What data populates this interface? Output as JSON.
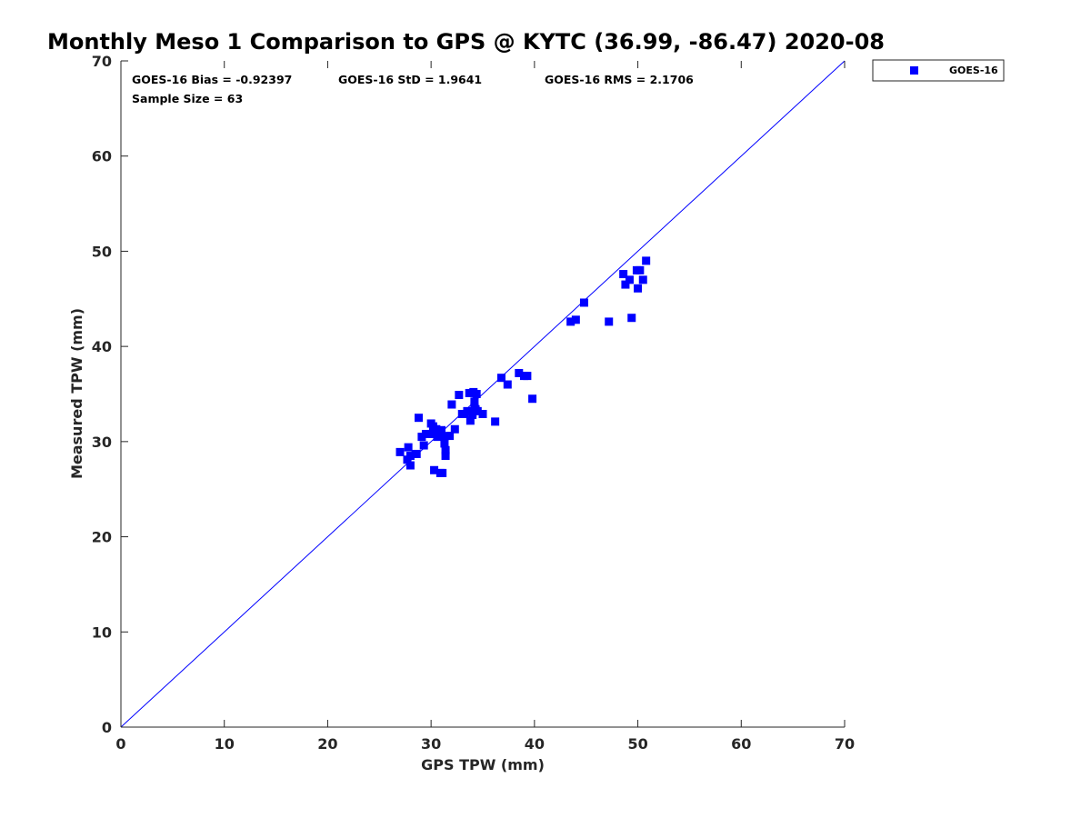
{
  "chart_data": {
    "type": "scatter",
    "title": "Monthly Meso 1 Comparison to GPS @ KYTC (36.99, -86.47) 2020-08",
    "xlabel": "GPS TPW (mm)",
    "ylabel": "Measured TPW (mm)",
    "xlim": [
      0,
      70
    ],
    "ylim": [
      0,
      70
    ],
    "xticks": [
      "0",
      "10",
      "20",
      "30",
      "40",
      "50",
      "60",
      "70"
    ],
    "yticks": [
      "0",
      "10",
      "20",
      "30",
      "40",
      "50",
      "60",
      "70"
    ],
    "grid": false,
    "legend_position": "outside-top-right",
    "stats": {
      "bias": "GOES-16 Bias = -0.92397",
      "std": "GOES-16 StD = 1.9641",
      "rms": "GOES-16 RMS = 2.1706",
      "sample": "Sample Size = 63"
    },
    "reference_line": {
      "from": [
        0,
        0
      ],
      "to": [
        70,
        70
      ],
      "color": "#0000ff"
    },
    "series": [
      {
        "name": "GOES-16",
        "color": "#0000ff",
        "marker": "square",
        "points": [
          [
            27.0,
            28.9
          ],
          [
            27.7,
            28.1
          ],
          [
            27.8,
            29.4
          ],
          [
            28.0,
            28.5
          ],
          [
            28.0,
            27.5
          ],
          [
            28.5,
            28.7
          ],
          [
            28.8,
            32.5
          ],
          [
            29.1,
            30.5
          ],
          [
            29.3,
            29.6
          ],
          [
            29.5,
            30.8
          ],
          [
            30.0,
            30.8
          ],
          [
            30.0,
            31.9
          ],
          [
            30.3,
            27.0
          ],
          [
            30.5,
            31.3
          ],
          [
            30.6,
            30.5
          ],
          [
            30.8,
            30.9
          ],
          [
            30.9,
            26.7
          ],
          [
            31.0,
            31.2
          ],
          [
            31.1,
            26.7
          ],
          [
            31.3,
            30.5
          ],
          [
            31.3,
            29.8
          ],
          [
            31.4,
            28.5
          ],
          [
            31.4,
            29.1
          ],
          [
            31.8,
            30.6
          ],
          [
            32.0,
            33.9
          ],
          [
            32.3,
            31.3
          ],
          [
            32.7,
            34.9
          ],
          [
            33.2,
            32.9
          ],
          [
            33.5,
            33.2
          ],
          [
            33.7,
            35.1
          ],
          [
            33.8,
            32.2
          ],
          [
            34.0,
            32.8
          ],
          [
            34.1,
            35.2
          ],
          [
            34.2,
            34.2
          ],
          [
            34.2,
            33.6
          ],
          [
            34.4,
            35.0
          ],
          [
            34.5,
            33.2
          ],
          [
            35.0,
            32.9
          ],
          [
            36.2,
            32.1
          ],
          [
            36.8,
            36.7
          ],
          [
            37.4,
            36.0
          ],
          [
            38.5,
            37.2
          ],
          [
            39.0,
            36.9
          ],
          [
            39.3,
            36.9
          ],
          [
            39.8,
            34.5
          ],
          [
            43.5,
            42.6
          ],
          [
            44.0,
            42.8
          ],
          [
            44.8,
            44.6
          ],
          [
            47.2,
            42.6
          ],
          [
            48.6,
            47.6
          ],
          [
            48.8,
            46.5
          ],
          [
            49.2,
            47.0
          ],
          [
            49.4,
            43.0
          ],
          [
            49.9,
            48.0
          ],
          [
            50.0,
            46.1
          ],
          [
            50.2,
            48.0
          ],
          [
            50.5,
            47.0
          ],
          [
            50.8,
            49.0
          ],
          [
            33.0,
            32.9
          ],
          [
            34.0,
            33.0
          ],
          [
            34.3,
            33.4
          ],
          [
            30.2,
            31.6
          ],
          [
            28.6,
            28.7
          ]
        ]
      }
    ]
  }
}
